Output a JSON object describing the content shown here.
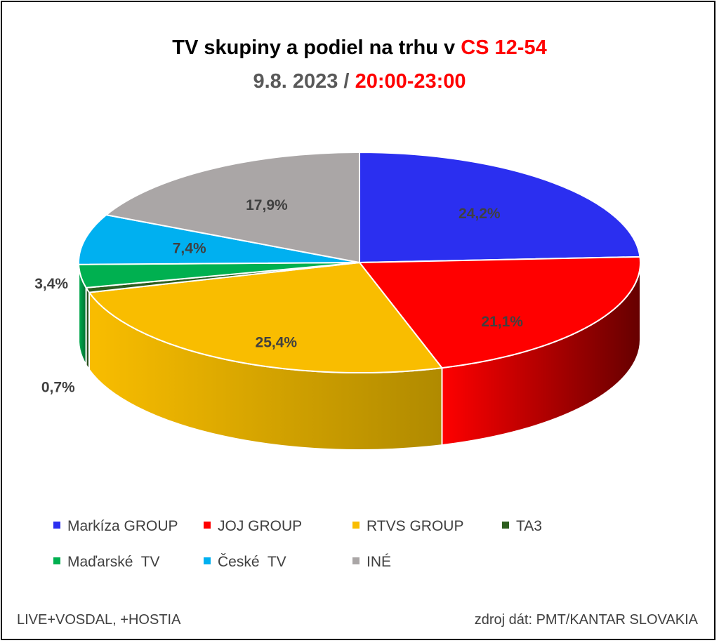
{
  "title": {
    "line1_prefix": "TV skupiny a podiel na trhu v",
    "line1_highlight": "CS 12-54",
    "line2_prefix": "9.8. 2023 /",
    "line2_highlight": "20:00-23:00"
  },
  "chart_data": {
    "type": "pie",
    "style": "3d",
    "title": "TV skupiny a podiel na trhu v CS 12-54 — 9.8. 2023 / 20:00-23:00",
    "categories": [
      "Markíza GROUP",
      "JOJ GROUP",
      "RTVS GROUP",
      "TA3",
      "Maďarské  TV",
      "České  TV",
      "INÉ"
    ],
    "values": [
      24.2,
      21.1,
      25.4,
      0.7,
      3.4,
      7.4,
      17.9
    ],
    "labels": [
      "24,2%",
      "21,1%",
      "25,4%",
      "0,7%",
      "3,4%",
      "7,4%",
      "17,9%"
    ],
    "colors": [
      "#2b2ff0",
      "#ff0000",
      "#f9bd00",
      "#2d5e1e",
      "#00b050",
      "#00b0f0",
      "#aaa6a6"
    ],
    "side_colors": [
      "#1b1d94",
      "#660000",
      "#b08a00",
      "#1d3d13",
      "#006e30",
      "#0070a0",
      "#6f6c6c"
    ],
    "legend_placement": "bottom"
  },
  "footnotes": {
    "left": "LIVE+VOSDAL, +HOSTIA",
    "right": "zdroj dát: PMT/KANTAR SLOVAKIA"
  }
}
